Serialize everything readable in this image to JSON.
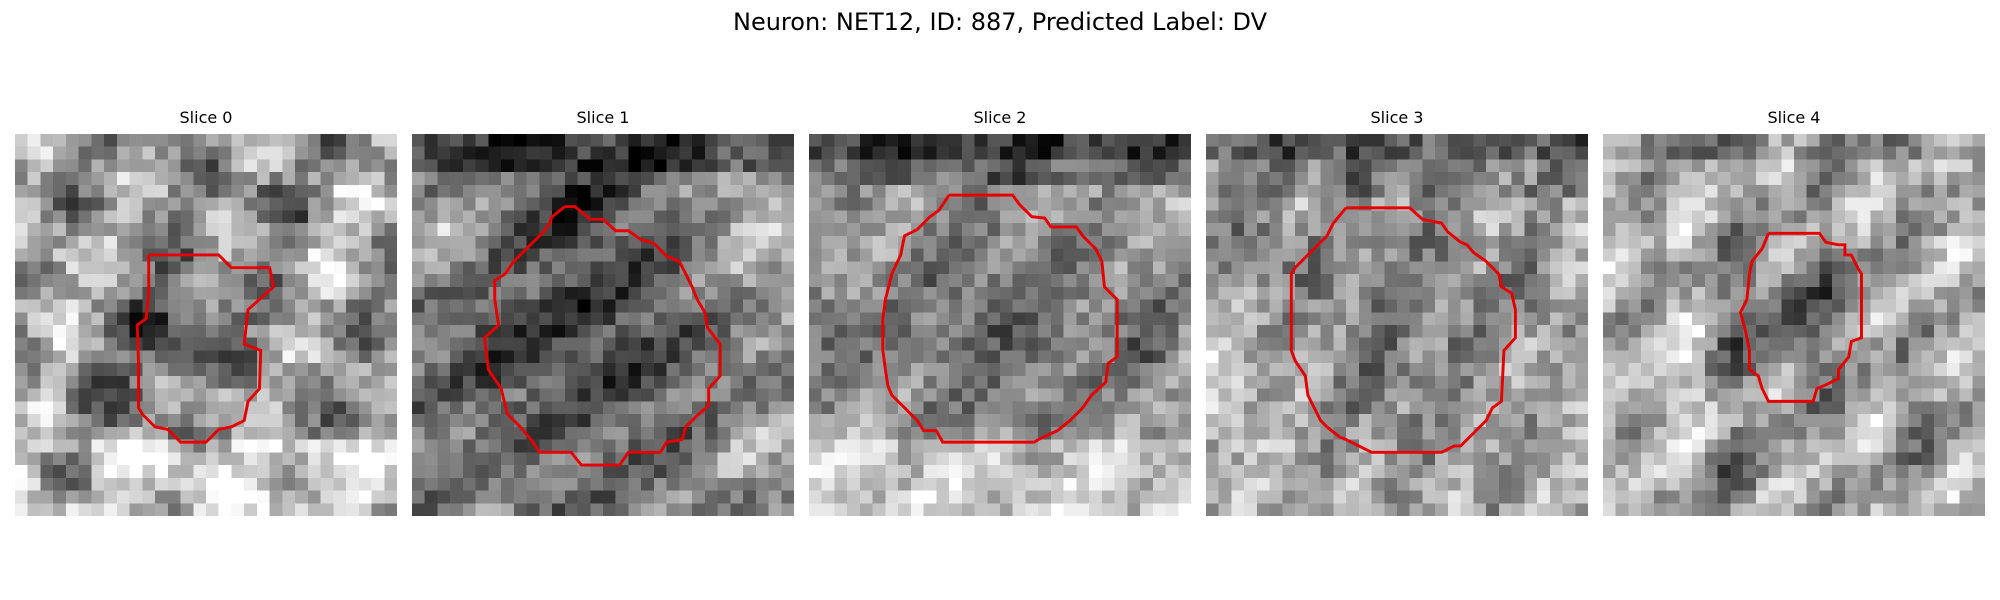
{
  "figure": {
    "title": "Neuron: NET12, ID: 887, Predicted Label: DV"
  },
  "outline_color": "#e60000",
  "panels": [
    {
      "title": "Slice 0",
      "image": "grayscale-microscopy-patch",
      "region": "red-roi-outline",
      "tone": "light-textured-background-with-dark-irregular-cell"
    },
    {
      "title": "Slice 1",
      "image": "grayscale-microscopy-patch",
      "region": "red-roi-outline",
      "tone": "dark-cell-body-with-dark-top-band"
    },
    {
      "title": "Slice 2",
      "image": "grayscale-microscopy-patch",
      "region": "red-roi-outline",
      "tone": "round-mid-gray-cell-with-dark-top-and-light-bottom"
    },
    {
      "title": "Slice 3",
      "image": "grayscale-microscopy-patch",
      "region": "red-roi-outline",
      "tone": "round-mottled-cell-on-light-background"
    },
    {
      "title": "Slice 4",
      "image": "grayscale-microscopy-patch",
      "region": "red-roi-outline",
      "tone": "small-dark-cell-on-light-textured-background"
    }
  ]
}
